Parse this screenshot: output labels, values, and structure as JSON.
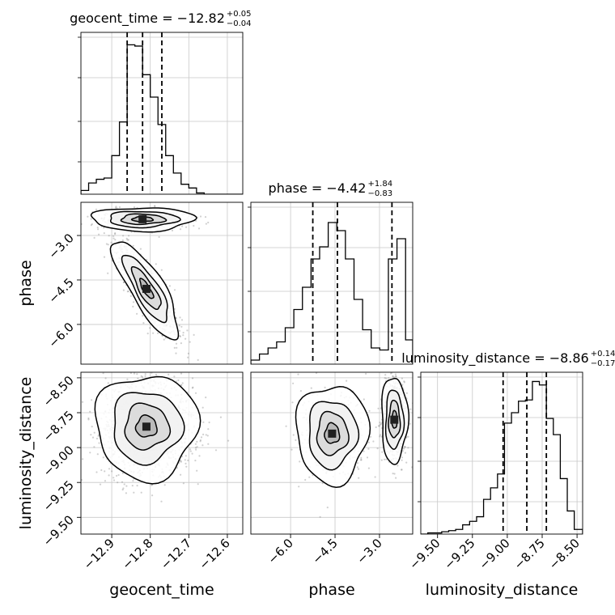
{
  "chart_data": {
    "type": "corner",
    "parameters": [
      {
        "name": "geocent_time",
        "title": {
          "prefix": "geocent_time = −12.82",
          "plus": "+0.05",
          "minus": "−0.04"
        },
        "median": -12.82,
        "quantiles": [
          -12.86,
          -12.82,
          -12.77
        ],
        "range": [
          -12.98,
          -12.56
        ],
        "ticks": [
          -12.9,
          -12.8,
          -12.7,
          -12.6
        ],
        "tick_labels": [
          "−12.9",
          "−12.8",
          "−12.7",
          "−12.6"
        ],
        "hist": {
          "bins": [
            -12.98,
            -12.96,
            -12.94,
            -12.92,
            -12.9,
            -12.88,
            -12.86,
            -12.84,
            -12.82,
            -12.8,
            -12.78,
            -12.76,
            -12.74,
            -12.72,
            -12.7,
            -12.68,
            -12.66,
            -12.64,
            -12.62,
            -12.6,
            -12.58,
            -12.56
          ],
          "values": [
            3,
            9,
            12,
            13,
            31,
            58,
            120,
            119,
            96,
            78,
            56,
            31,
            17,
            8,
            5,
            1,
            0,
            0,
            0,
            0,
            0
          ],
          "ymax": 130
        }
      },
      {
        "name": "phase",
        "title": {
          "prefix": "phase = −4.42",
          "plus": "+1.84",
          "minus": "−0.83"
        },
        "median": -4.42,
        "quantiles": [
          -5.25,
          -4.42,
          -2.58
        ],
        "range": [
          -7.34,
          -1.88
        ],
        "ticks": [
          -6.0,
          -4.5,
          -3.0
        ],
        "tick_labels": [
          "−6.0",
          "−4.5",
          "−3.0"
        ],
        "hist": {
          "bins": [
            -7.34,
            -7.05,
            -6.76,
            -6.47,
            -6.18,
            -5.89,
            -5.6,
            -5.31,
            -5.02,
            -4.73,
            -4.44,
            -4.15,
            -3.86,
            -3.57,
            -3.28,
            -2.99,
            -2.7,
            -2.41,
            -2.12,
            -1.88
          ],
          "values": [
            2,
            5,
            8,
            11,
            18,
            27,
            38,
            52,
            58,
            70,
            66,
            52,
            32,
            17,
            8,
            7,
            52,
            62,
            12
          ],
          "ymax": 80
        }
      },
      {
        "name": "luminosity_distance",
        "title": {
          "prefix": "luminosity_distance = −8.86",
          "plus": "+0.14",
          "minus": "−0.17"
        },
        "median": -8.86,
        "quantiles": [
          -9.03,
          -8.86,
          -8.72
        ],
        "range": [
          -9.62,
          -8.46
        ],
        "ticks": [
          -9.5,
          -9.25,
          -9.0,
          -8.75,
          -8.5
        ],
        "tick_labels": [
          "−9.50",
          "−9.25",
          "−9.00",
          "−8.75",
          "−8.50"
        ],
        "hist": {
          "bins": [
            -9.62,
            -9.57,
            -9.52,
            -9.47,
            -9.42,
            -9.37,
            -9.32,
            -9.27,
            -9.22,
            -9.17,
            -9.12,
            -9.07,
            -9.02,
            -8.97,
            -8.92,
            -8.87,
            -8.82,
            -8.77,
            -8.72,
            -8.67,
            -8.62,
            -8.57,
            -8.52,
            -8.46
          ],
          "values": [
            0,
            1,
            1,
            2,
            3,
            4,
            8,
            11,
            15,
            30,
            40,
            52,
            96,
            105,
            115,
            116,
            132,
            129,
            100,
            86,
            48,
            20,
            4
          ],
          "ymax": 140
        }
      }
    ],
    "axis_labels": {
      "x": [
        "geocent_time",
        "phase",
        "luminosity_distance"
      ],
      "y": [
        "phase",
        "luminosity_distance"
      ]
    },
    "grid": true,
    "contours": [
      {
        "x_param": "geocent_time",
        "y_param": "phase",
        "modes": [
          {
            "cx": -12.82,
            "cy": -2.45,
            "sx": 0.06,
            "sy": 0.18
          },
          {
            "cx": -12.81,
            "cy": -4.8,
            "sx": 0.045,
            "sy": 0.75,
            "tilt": 0.7
          }
        ]
      },
      {
        "x_param": "geocent_time",
        "y_param": "luminosity_distance",
        "modes": [
          {
            "cx": -12.81,
            "cy": -8.85,
            "sx": 0.06,
            "sy": 0.17
          }
        ]
      },
      {
        "x_param": "phase",
        "y_param": "luminosity_distance",
        "modes": [
          {
            "cx": -4.6,
            "cy": -8.9,
            "sx": 0.55,
            "sy": 0.16
          },
          {
            "cx": -2.5,
            "cy": -8.8,
            "sx": 0.2,
            "sy": 0.14
          }
        ]
      }
    ]
  }
}
